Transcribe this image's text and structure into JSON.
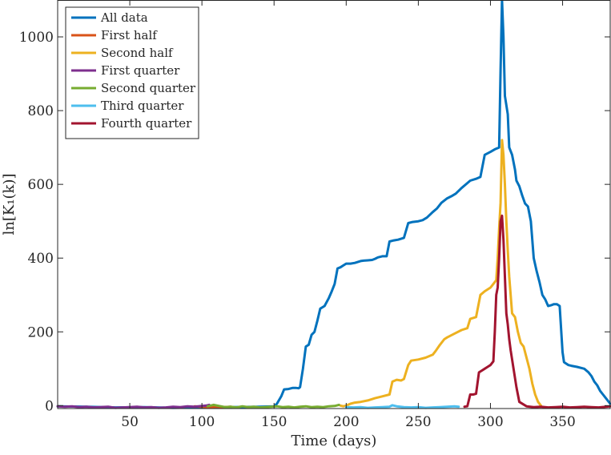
{
  "chart_data": {
    "type": "line",
    "title": "",
    "xlabel": "Time (days)",
    "ylabel": "ln[K₁(k)]",
    "xlim": [
      0,
      383
    ],
    "ylim": [
      -8,
      1100
    ],
    "xticks": [
      50,
      100,
      150,
      200,
      250,
      300,
      350
    ],
    "yticks": [
      0,
      200,
      400,
      600,
      800,
      1000
    ],
    "grid": false,
    "legend_position": "top-left",
    "series": [
      {
        "name": "All data",
        "color": "#0072BD",
        "x": [
          0,
          20,
          40,
          60,
          80,
          100,
          120,
          140,
          150,
          152,
          155,
          157,
          160,
          163,
          165,
          167,
          168,
          170,
          172,
          174,
          176,
          178,
          180,
          182,
          185,
          188,
          190,
          192,
          194,
          196,
          198,
          200,
          203,
          206,
          210,
          212,
          215,
          218,
          220,
          222,
          225,
          228,
          230,
          233,
          236,
          240,
          243,
          246,
          250,
          253,
          256,
          260,
          263,
          266,
          270,
          273,
          276,
          280,
          283,
          286,
          290,
          293,
          296,
          300,
          303,
          306,
          307,
          308,
          309,
          310,
          312,
          313,
          315,
          317,
          318,
          320,
          322,
          324,
          326,
          328,
          330,
          332,
          334,
          336,
          338,
          340,
          342,
          344,
          346,
          348,
          350,
          351,
          352,
          354,
          356,
          360,
          365,
          368,
          370,
          372,
          374,
          376,
          378,
          380,
          383
        ],
        "values": [
          -2,
          -3,
          -5,
          -4,
          -6,
          -5,
          -4,
          -3,
          -2,
          5,
          25,
          44,
          45,
          48,
          48,
          47,
          50,
          100,
          160,
          165,
          192,
          200,
          230,
          263,
          270,
          292,
          310,
          330,
          372,
          375,
          380,
          385,
          385,
          387,
          392,
          393,
          394,
          395,
          398,
          402,
          405,
          405,
          445,
          448,
          450,
          455,
          495,
          498,
          500,
          503,
          510,
          525,
          535,
          550,
          562,
          568,
          575,
          590,
          600,
          610,
          615,
          620,
          680,
          688,
          695,
          700,
          910,
          1100,
          1000,
          840,
          790,
          700,
          680,
          640,
          610,
          595,
          570,
          548,
          540,
          500,
          400,
          365,
          335,
          300,
          288,
          270,
          272,
          275,
          275,
          270,
          145,
          118,
          115,
          110,
          108,
          105,
          100,
          90,
          80,
          65,
          55,
          40,
          30,
          20,
          5
        ]
      },
      {
        "name": "First half",
        "color": "#D95319",
        "x": [
          95,
          100,
          105,
          110,
          115,
          120
        ],
        "values": [
          -2,
          -3,
          -4,
          -3,
          -4,
          -3
        ]
      },
      {
        "name": "Second half",
        "color": "#EDB120",
        "x": [
          196,
          198,
          200,
          203,
          206,
          210,
          215,
          220,
          225,
          230,
          232,
          235,
          238,
          240,
          243,
          245,
          250,
          255,
          260,
          262,
          265,
          268,
          270,
          275,
          280,
          284,
          286,
          290,
          293,
          296,
          300,
          302,
          304,
          305,
          306,
          307,
          308,
          309,
          310,
          311,
          312,
          313,
          314,
          315,
          317,
          319,
          321,
          323,
          325,
          327,
          329,
          331,
          333,
          335
        ],
        "values": [
          0,
          -2,
          0,
          5,
          8,
          10,
          14,
          20,
          25,
          30,
          65,
          70,
          68,
          72,
          110,
          122,
          125,
          130,
          138,
          148,
          165,
          180,
          185,
          195,
          205,
          210,
          235,
          240,
          300,
          310,
          320,
          330,
          340,
          400,
          480,
          550,
          720,
          680,
          600,
          500,
          420,
          350,
          300,
          250,
          240,
          200,
          170,
          160,
          130,
          100,
          60,
          30,
          10,
          0
        ]
      },
      {
        "name": "First quarter",
        "color": "#7E2F8E",
        "x": [
          0,
          5,
          10,
          15,
          20,
          25,
          30,
          35,
          40,
          45,
          50,
          55,
          60,
          65,
          70,
          75,
          80,
          85,
          90,
          95,
          100,
          103,
          105
        ],
        "values": [
          -2,
          -3,
          -2,
          -4,
          -3,
          -5,
          -4,
          -3,
          -6,
          -5,
          -4,
          -3,
          -5,
          -4,
          -6,
          -5,
          -3,
          -4,
          -2,
          -3,
          -1,
          0,
          2
        ]
      },
      {
        "name": "Second quarter",
        "color": "#77AC30",
        "x": [
          104,
          108,
          112,
          116,
          120,
          124,
          128,
          132,
          136,
          140,
          144,
          148,
          152,
          156,
          160,
          164,
          168,
          172,
          176,
          180,
          184,
          188,
          192,
          195
        ],
        "values": [
          -2,
          2,
          -1,
          -4,
          -3,
          -5,
          -2,
          -4,
          -3,
          -5,
          -4,
          -3,
          -2,
          -4,
          -3,
          -5,
          -3,
          -2,
          -4,
          -3,
          -4,
          -2,
          -1,
          2
        ]
      },
      {
        "name": "Third quarter",
        "color": "#4DBEEE",
        "x": [
          200,
          205,
          210,
          215,
          220,
          225,
          230,
          232,
          235,
          240,
          245,
          250,
          255,
          260,
          265,
          270,
          275,
          278
        ],
        "values": [
          -4,
          -5,
          -4,
          -6,
          -5,
          -4,
          -3,
          1,
          -2,
          -4,
          -5,
          -4,
          -6,
          -5,
          -4,
          -3,
          -2,
          -3
        ]
      },
      {
        "name": "Fourth quarter",
        "color": "#A2142F",
        "x": [
          282,
          284,
          286,
          288,
          290,
          292,
          294,
          296,
          298,
          300,
          302,
          303,
          304,
          305,
          306,
          307,
          308,
          309,
          310,
          311,
          312,
          313,
          314,
          316,
          318,
          320,
          325,
          330,
          335,
          340,
          345,
          350,
          355,
          360,
          365,
          370,
          375,
          380,
          383
        ],
        "values": [
          -3,
          -2,
          30,
          30,
          32,
          90,
          95,
          100,
          105,
          110,
          120,
          200,
          300,
          320,
          400,
          500,
          515,
          450,
          350,
          250,
          220,
          180,
          150,
          100,
          50,
          10,
          -2,
          -4,
          -3,
          -5,
          -4,
          -3,
          -5,
          -4,
          -3,
          -4,
          -5,
          -3,
          -2
        ]
      }
    ]
  }
}
